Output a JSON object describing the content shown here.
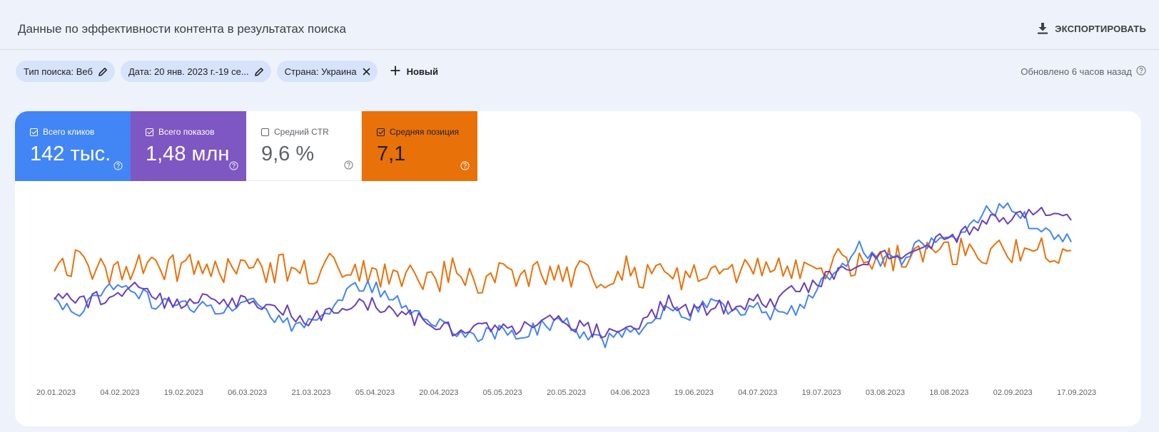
{
  "header": {
    "title": "Данные по эффективности контента в результатах поиска",
    "export_label": "ЭКСПОРТИРОВАТЬ",
    "export_icon": "download-icon"
  },
  "filters": {
    "chips": [
      {
        "label": "Тип поиска: Веб",
        "icon": "edit-icon"
      },
      {
        "label": "Дата: 20 янв. 2023 г.-19 се...",
        "icon": "edit-icon"
      },
      {
        "label": "Страна: Украина",
        "icon": "close-icon"
      }
    ],
    "new_label": "Новый",
    "updated": "Обновлено 6 часов назад"
  },
  "metrics": [
    {
      "label": "Всего кликов",
      "value": "142 тыс.",
      "checked": true,
      "color": "#4285f4"
    },
    {
      "label": "Всего показов",
      "value": "1,48 млн",
      "checked": true,
      "color": "#7e57c2"
    },
    {
      "label": "Средний CTR",
      "value": "9,6 %",
      "checked": false,
      "color": "#ffffff"
    },
    {
      "label": "Средняя позиция",
      "value": "7,1",
      "checked": true,
      "color": "#e8710a"
    }
  ],
  "chart_data": {
    "type": "line",
    "x_ticks": [
      "20.01.2023",
      "04.02.2023",
      "19.02.2023",
      "06.03.2023",
      "21.03.2023",
      "05.04.2023",
      "20.04.2023",
      "05.05.2023",
      "20.05.2023",
      "04.06.2023",
      "19.06.2023",
      "04.07.2023",
      "19.07.2023",
      "03.08.2023",
      "18.08.2023",
      "02.09.2023",
      "17.09.2023"
    ],
    "x_range": [
      "2023-01-20",
      "2023-09-19"
    ],
    "y_axes_visible": false,
    "grid": false,
    "series": [
      {
        "metric": "clicks",
        "color": "#4285f4",
        "relative_level": [
          0.4,
          0.3,
          0.43,
          0.45,
          0.42,
          0.35,
          0.36,
          0.35,
          0.32,
          0.41,
          0.31,
          0.24,
          0.23,
          0.33,
          0.45,
          0.47,
          0.38,
          0.31,
          0.27,
          0.21,
          0.17,
          0.2,
          0.18,
          0.22,
          0.25,
          0.18,
          0.13,
          0.18,
          0.25,
          0.35,
          0.3,
          0.4,
          0.32,
          0.34,
          0.3,
          0.33,
          0.45,
          0.55,
          0.7,
          0.63,
          0.62,
          0.72,
          0.78,
          0.78,
          0.91,
          0.94,
          0.85,
          0.76,
          0.73
        ]
      },
      {
        "metric": "impressions",
        "color": "#6a3fb8",
        "relative_level": [
          0.43,
          0.35,
          0.4,
          0.4,
          0.46,
          0.38,
          0.36,
          0.42,
          0.37,
          0.37,
          0.36,
          0.31,
          0.27,
          0.33,
          0.37,
          0.36,
          0.32,
          0.27,
          0.23,
          0.21,
          0.23,
          0.22,
          0.21,
          0.25,
          0.26,
          0.21,
          0.2,
          0.23,
          0.27,
          0.37,
          0.31,
          0.33,
          0.35,
          0.38,
          0.38,
          0.44,
          0.48,
          0.55,
          0.6,
          0.63,
          0.66,
          0.71,
          0.74,
          0.78,
          0.84,
          0.88,
          0.9,
          0.93,
          0.86
        ]
      },
      {
        "metric": "position",
        "color": "#e8710a",
        "relative_level": [
          0.55,
          0.62,
          0.58,
          0.55,
          0.6,
          0.58,
          0.56,
          0.59,
          0.57,
          0.6,
          0.55,
          0.58,
          0.54,
          0.58,
          0.55,
          0.52,
          0.56,
          0.54,
          0.51,
          0.57,
          0.48,
          0.55,
          0.53,
          0.57,
          0.52,
          0.56,
          0.53,
          0.57,
          0.53,
          0.52,
          0.53,
          0.57,
          0.55,
          0.54,
          0.62,
          0.57,
          0.59,
          0.61,
          0.6,
          0.61,
          0.64,
          0.66,
          0.66,
          0.67,
          0.68,
          0.67,
          0.69,
          0.66,
          0.68
        ]
      }
    ]
  }
}
